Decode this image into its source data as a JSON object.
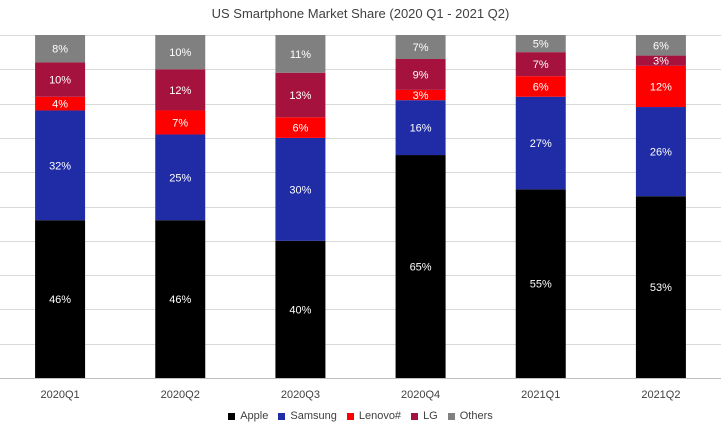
{
  "chart_data": {
    "type": "bar",
    "stacked": true,
    "title": "US Smartphone Market Share (2020 Q1 - 2021 Q2)",
    "categories": [
      "2020Q1",
      "2020Q2",
      "2020Q3",
      "2020Q4",
      "2021Q1",
      "2021Q2"
    ],
    "series": [
      {
        "name": "Apple",
        "color": "#000000",
        "label_color": "#ffffff",
        "values": [
          46,
          46,
          40,
          65,
          55,
          53
        ]
      },
      {
        "name": "Samsung",
        "color": "#1f2ca6",
        "label_color": "#ffffff",
        "values": [
          32,
          25,
          30,
          16,
          27,
          26
        ]
      },
      {
        "name": "Lenovo#",
        "color": "#ff0000",
        "label_color": "#ffffff",
        "values": [
          4,
          7,
          6,
          3,
          6,
          12
        ]
      },
      {
        "name": "LG",
        "color": "#a5123e",
        "label_color": "#ffffff",
        "values": [
          10,
          12,
          13,
          9,
          7,
          3
        ]
      },
      {
        "name": "Others",
        "color": "#808080",
        "label_color": "#ffffff",
        "values": [
          8,
          10,
          11,
          7,
          5,
          6
        ]
      }
    ],
    "value_suffix": "%",
    "ylim": [
      0,
      100
    ],
    "grid": true,
    "legend_position": "bottom"
  }
}
